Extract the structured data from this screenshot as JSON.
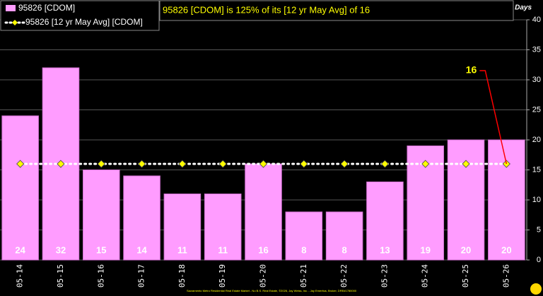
{
  "chart_data": {
    "type": "bar",
    "title": "95826 [CDOM] is 125% of its [12 yr May Avg] of 16",
    "y_axis_label": "Days",
    "categories": [
      "05-14",
      "05-15",
      "05-16",
      "05-17",
      "05-18",
      "05-19",
      "05-20",
      "05-21",
      "05-22",
      "05-23",
      "05-24",
      "05-25",
      "05-26"
    ],
    "series": [
      {
        "name": "95826 [CDOM]",
        "color": "#ff9cff",
        "values": [
          24,
          32,
          15,
          14,
          11,
          11,
          16,
          8,
          8,
          13,
          19,
          20,
          20
        ]
      },
      {
        "name": "95826 [12 yr May Avg] [CDOM]",
        "color": "#ffff00",
        "values": [
          16,
          16,
          16,
          16,
          16,
          16,
          16,
          16,
          16,
          16,
          16,
          16,
          16
        ]
      }
    ],
    "annotation": "16",
    "ylim": [
      0,
      40
    ],
    "yticks": [
      0,
      5,
      10,
      15,
      20,
      25,
      30,
      35,
      40
    ],
    "grid": true,
    "footer": "Sacramento Metro Residential Real Estate Market - No B.S. Real Estate, ©2026, Jay Weiss, Inc. - Jay Emeritus, Broker, DRE#1780000"
  }
}
